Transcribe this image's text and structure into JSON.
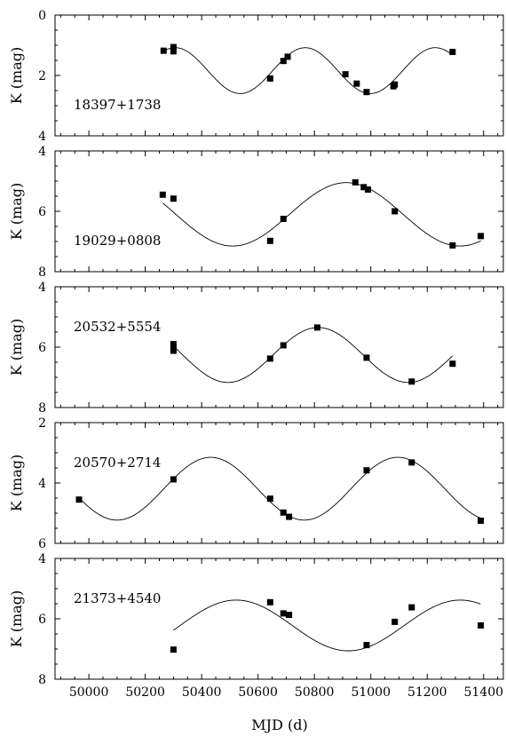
{
  "chart_data": [
    {
      "type": "scatter",
      "label": "18397+1738",
      "ylabel": "K (mag)",
      "ylim": [
        0,
        4
      ],
      "y_reversed": true,
      "yticks": [
        "0",
        "2",
        "4"
      ],
      "points": [
        [
          50265,
          1.18
        ],
        [
          50300,
          1.06
        ],
        [
          50300,
          1.2
        ],
        [
          50643,
          2.1
        ],
        [
          50690,
          1.52
        ],
        [
          50705,
          1.38
        ],
        [
          50910,
          1.96
        ],
        [
          50950,
          2.27
        ],
        [
          50985,
          2.55
        ],
        [
          51080,
          2.36
        ],
        [
          51085,
          2.3
        ],
        [
          51290,
          1.22
        ]
      ],
      "curve": {
        "mean": 1.84,
        "amplitude": 0.76,
        "period": 461,
        "min_mjd": 50537
      }
    },
    {
      "type": "scatter",
      "label": "19029+0808",
      "ylabel": "K (mag)",
      "ylim": [
        4,
        8
      ],
      "y_reversed": true,
      "yticks": [
        "4",
        "6",
        "8"
      ],
      "points": [
        [
          50262,
          5.45
        ],
        [
          50300,
          5.58
        ],
        [
          50643,
          6.98
        ],
        [
          50690,
          6.25
        ],
        [
          50945,
          5.04
        ],
        [
          50975,
          5.2
        ],
        [
          50990,
          5.28
        ],
        [
          51085,
          6.0
        ],
        [
          51290,
          7.13
        ],
        [
          51390,
          6.82
        ]
      ],
      "curve": {
        "mean": 6.1,
        "amplitude": 1.05,
        "period": 806,
        "min_mjd": 50510
      }
    },
    {
      "type": "scatter",
      "label": "20532+5554",
      "ylabel": "K (mag)",
      "ylim": [
        4,
        8
      ],
      "y_reversed": true,
      "yticks": [
        "4",
        "6",
        "8"
      ],
      "points": [
        [
          50300,
          5.9
        ],
        [
          50300,
          6.02
        ],
        [
          50300,
          6.12
        ],
        [
          50643,
          6.38
        ],
        [
          50690,
          5.94
        ],
        [
          50810,
          5.35
        ],
        [
          50985,
          6.35
        ],
        [
          51145,
          7.14
        ],
        [
          51290,
          6.55
        ]
      ],
      "curve": {
        "mean": 6.26,
        "amplitude": 0.91,
        "period": 640,
        "min_mjd": 50493
      }
    },
    {
      "type": "scatter",
      "label": "20570+2714",
      "ylabel": "K (mag)",
      "ylim": [
        2,
        6
      ],
      "y_reversed": true,
      "yticks": [
        "2",
        "4",
        "6"
      ],
      "points": [
        [
          49965,
          4.55
        ],
        [
          50300,
          3.88
        ],
        [
          50643,
          4.52
        ],
        [
          50690,
          4.98
        ],
        [
          50710,
          5.12
        ],
        [
          50985,
          3.58
        ],
        [
          51145,
          3.32
        ],
        [
          51390,
          5.25
        ]
      ],
      "curve": {
        "mean": 4.19,
        "amplitude": 1.04,
        "period": 664,
        "min_mjd": 50100
      }
    },
    {
      "type": "scatter",
      "label": "21373+4540",
      "ylabel": "K (mag)",
      "ylim": [
        4,
        8
      ],
      "y_reversed": true,
      "yticks": [
        "4",
        "6",
        "8"
      ],
      "points": [
        [
          50300,
          7.02
        ],
        [
          50643,
          5.45
        ],
        [
          50690,
          5.82
        ],
        [
          50710,
          5.87
        ],
        [
          50985,
          6.87
        ],
        [
          51085,
          6.1
        ],
        [
          51145,
          5.62
        ],
        [
          51390,
          6.22
        ]
      ],
      "curve": {
        "mean": 6.22,
        "amplitude": 0.84,
        "period": 795,
        "min_mjd": 50920
      }
    }
  ],
  "xaxis": {
    "label": "MJD (d)",
    "xlim": [
      49880,
      51470
    ],
    "ticks": [
      "50000",
      "50200",
      "50400",
      "50600",
      "50800",
      "51000",
      "51200",
      "51400"
    ],
    "minor_step": 50
  }
}
